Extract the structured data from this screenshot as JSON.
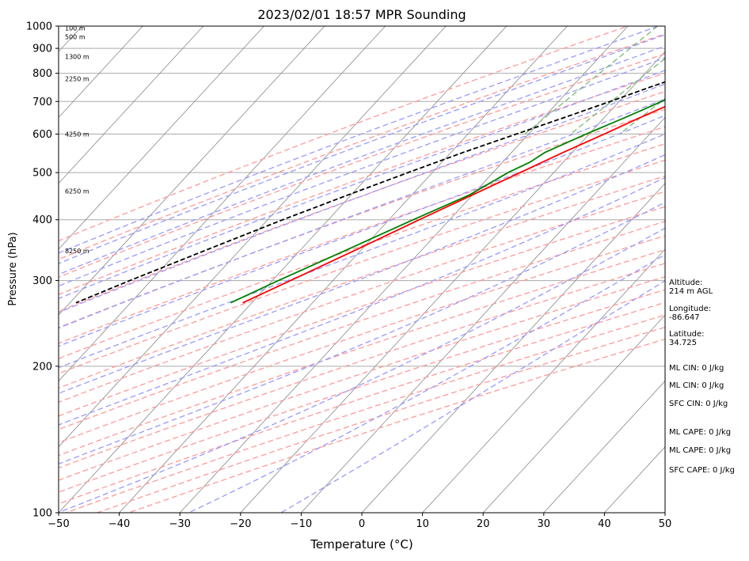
{
  "chart_data": {
    "type": "line",
    "title": "2023/02/01 18:57 MPR Sounding",
    "xlabel": "Temperature (°C)",
    "ylabel": "Pressure (hPa)",
    "xlim": [
      -50,
      50
    ],
    "ylim": [
      1000,
      100
    ],
    "y_scale": "log",
    "skew": true,
    "x_ticks": [
      -50,
      -40,
      -30,
      -20,
      -10,
      0,
      10,
      20,
      30,
      40,
      50
    ],
    "y_ticks": [
      1000,
      900,
      800,
      700,
      600,
      500,
      400,
      300,
      200,
      100
    ],
    "grid": true,
    "series": [
      {
        "name": "",
        "kind": "temperature",
        "color": "#ff0000",
        "points": [
          {
            "p": 1000,
            "t": 3.0
          },
          {
            "p": 975,
            "t": 1.6
          },
          {
            "p": 960,
            "t": 1.5
          },
          {
            "p": 935,
            "t": 2.5
          },
          {
            "p": 900,
            "t": 0.5
          },
          {
            "p": 870,
            "t": -1.0
          },
          {
            "p": 850,
            "t": -2.0
          },
          {
            "p": 800,
            "t": -4.5
          },
          {
            "p": 750,
            "t": -7.5
          },
          {
            "p": 700,
            "t": -10.5
          },
          {
            "p": 650,
            "t": -14.0
          },
          {
            "p": 600,
            "t": -17.5
          },
          {
            "p": 550,
            "t": -21.5
          },
          {
            "p": 500,
            "t": -25.5
          },
          {
            "p": 450,
            "t": -30.0
          },
          {
            "p": 400,
            "t": -35.0
          },
          {
            "p": 350,
            "t": -40.5
          },
          {
            "p": 300,
            "t": -47.0
          },
          {
            "p": 270,
            "t": -51.5
          }
        ]
      },
      {
        "name": "",
        "kind": "dewpoint",
        "color": "#008000",
        "points": [
          {
            "p": 1000,
            "t": 1.8
          },
          {
            "p": 975,
            "t": 0.9
          },
          {
            "p": 960,
            "t": 0.2
          },
          {
            "p": 935,
            "t": -1.5
          },
          {
            "p": 920,
            "t": -2.5
          },
          {
            "p": 900,
            "t": -2.0
          },
          {
            "p": 885,
            "t": -1.0
          },
          {
            "p": 870,
            "t": -3.5
          },
          {
            "p": 850,
            "t": -5.0
          },
          {
            "p": 800,
            "t": -7.5
          },
          {
            "p": 750,
            "t": -10.5
          },
          {
            "p": 700,
            "t": -13.0
          },
          {
            "p": 650,
            "t": -16.5
          },
          {
            "p": 600,
            "t": -20.5
          },
          {
            "p": 550,
            "t": -24.5
          },
          {
            "p": 525,
            "t": -25.5
          },
          {
            "p": 500,
            "t": -27.5
          },
          {
            "p": 450,
            "t": -30.5
          },
          {
            "p": 400,
            "t": -36.0
          },
          {
            "p": 350,
            "t": -42.0
          },
          {
            "p": 300,
            "t": -49.0
          },
          {
            "p": 270,
            "t": -53.5
          }
        ]
      },
      {
        "name": "",
        "kind": "parcel",
        "color": "#000000",
        "dashed": true,
        "points": [
          {
            "p": 1000,
            "t": 3.0
          },
          {
            "p": 975,
            "t": 1.0
          },
          {
            "p": 950,
            "t": -1.2
          },
          {
            "p": 920,
            "t": -3.5
          },
          {
            "p": 900,
            "t": -5.0
          },
          {
            "p": 850,
            "t": -8.5
          },
          {
            "p": 800,
            "t": -12.5
          },
          {
            "p": 750,
            "t": -17.0
          },
          {
            "p": 700,
            "t": -21.5
          },
          {
            "p": 650,
            "t": -26.5
          },
          {
            "p": 600,
            "t": -32.0
          },
          {
            "p": 550,
            "t": -38.0
          },
          {
            "p": 500,
            "t": -44.0
          },
          {
            "p": 450,
            "t": -50.5
          },
          {
            "p": 400,
            "t": -57.5
          },
          {
            "p": 350,
            "t": -65.0
          },
          {
            "p": 300,
            "t": -73.5
          },
          {
            "p": 270,
            "t": -79.0
          }
        ]
      }
    ],
    "height_labels": [
      {
        "p": 990,
        "text": "100 m"
      },
      {
        "p": 950,
        "text": "500 m"
      },
      {
        "p": 865,
        "text": "1300 m"
      },
      {
        "p": 780,
        "text": "2250 m"
      },
      {
        "p": 600,
        "text": "4250 m"
      },
      {
        "p": 458,
        "text": "6250 m"
      },
      {
        "p": 345,
        "text": "8250 m"
      }
    ],
    "stats": [
      {
        "p_anchor": 122,
        "text": "SFC CAPE: 0 J/kg"
      },
      {
        "p_anchor": 134,
        "text": "ML CAPE: 0 J/kg"
      },
      {
        "p_anchor": 146,
        "text": "ML CAPE: 0 J/kg"
      },
      {
        "p_anchor": 167,
        "text": "SFC CIN: 0 J/kg"
      },
      {
        "p_anchor": 182,
        "text": "ML CIN: 0 J/kg"
      },
      {
        "p_anchor": 198,
        "text": "ML CIN: 0 J/kg"
      },
      {
        "p_anchor": 232,
        "text": "Latitude:\n34.725"
      },
      {
        "p_anchor": 262,
        "text": "Longitude:\n-86.647"
      },
      {
        "p_anchor": 296,
        "text": "Altitude:\n214 m AGL"
      }
    ],
    "colors": {
      "dry_adiabats": "#ff9999",
      "moist_adiabats": "#9999ff",
      "mixing_ratio": "#77bb77",
      "isotherms": "#888888",
      "isobars": "#aaaaaa"
    }
  }
}
